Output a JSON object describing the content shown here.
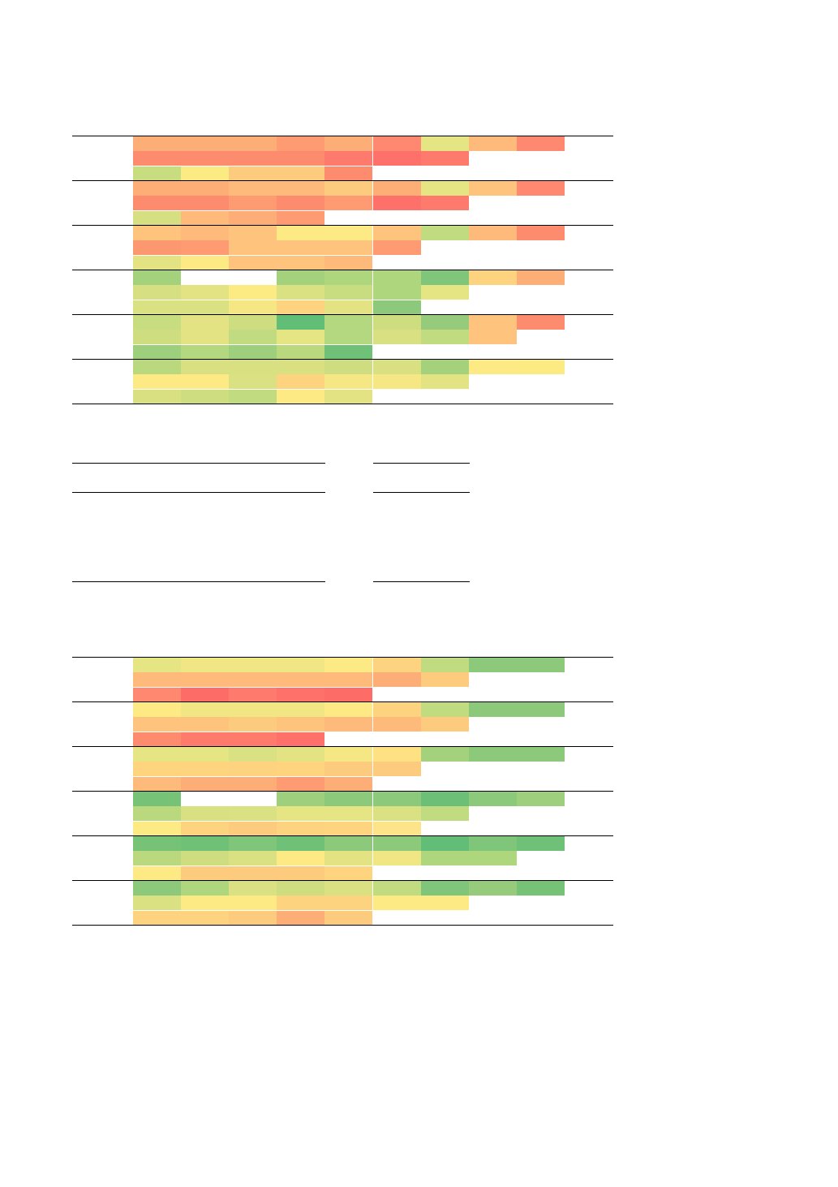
{
  "palette": {
    "a": "#fdad76",
    "b": "#fd8c6f",
    "c": "#fe7a6c",
    "d": "#fe9b72",
    "e": "#fb9870",
    "f": "#fec37d",
    "g": "#fdba7b",
    "h": "#fe716a",
    "i": "#fe6c68",
    "j": "#fe8970",
    "k": "#e6e584",
    "l": "#c8dc80",
    "m": "#fceb83",
    "n": "#fed37f",
    "o": "#d6e082",
    "p": "#fdcb7e",
    "q": "#feea85",
    "r": "#aed67d",
    "s": "#a4d27c",
    "t": "#c0db80",
    "u": "#7fc57a",
    "v": "#e3e383",
    "w": "#dae182",
    "x": "#f5e884",
    "y": "#bad97f",
    "z": "#8cc97a",
    "A": "#62bd77",
    "B": "#b4d87f",
    "C": "#d8e082",
    "D": "#cddd80",
    "E": "#9ecf7c",
    "F": "#6fc178",
    "G": "#96cb7b",
    "H": "#f0e784",
    "I": "#fde38a",
    "J": "#7fc67b",
    "K": "#6cbf77",
    "L": "#fee183",
    "M": "#fed47f",
    "N": "#76c378"
  },
  "heatmap_top": [
    [
      "a",
      "a",
      "a",
      "d",
      "a",
      "j",
      "k",
      "g",
      "j"
    ],
    [
      "b",
      "b",
      "b",
      "b",
      "c",
      "h",
      "c"
    ],
    [
      "l",
      "m",
      "p",
      "p",
      "b"
    ],
    [
      "a",
      "a",
      "g",
      "g",
      "p",
      "a",
      "k",
      "f",
      "j"
    ],
    [
      "b",
      "b",
      "d",
      "b",
      "d",
      "h",
      "c"
    ],
    [
      "o",
      "g",
      "a",
      "d"
    ],
    [
      "f",
      "g",
      "f",
      "q",
      "q",
      "f",
      "t",
      "g",
      "b"
    ],
    [
      "e",
      "d",
      "f",
      "f",
      "f",
      "d"
    ],
    [
      "v",
      "q",
      "f",
      "f",
      "g"
    ],
    [
      "s",
      "-",
      "-",
      "s",
      "r",
      "r",
      "u",
      "n",
      "a"
    ],
    [
      "o",
      "v",
      "m",
      "w",
      "l",
      "r",
      "k"
    ],
    [
      "w",
      "w",
      "x",
      "n",
      "v",
      "z"
    ],
    [
      "l",
      "v",
      "D",
      "A",
      "B",
      "D",
      "G",
      "f",
      "b"
    ],
    [
      "D",
      "v",
      "t",
      "k",
      "B",
      "C",
      "t",
      "f"
    ],
    [
      "E",
      "B",
      "E",
      "y",
      "F"
    ],
    [
      "y",
      "C",
      "C",
      "C",
      "D",
      "C",
      "s",
      "q",
      "m"
    ],
    [
      "q",
      "q",
      "w",
      "n",
      "x",
      "x",
      "v"
    ],
    [
      "C",
      "D",
      "t",
      "q",
      "v"
    ]
  ],
  "heatmap_bottom": [
    [
      "k",
      "H",
      "H",
      "H",
      "q",
      "n",
      "t",
      "z",
      "z"
    ],
    [
      "g",
      "g",
      "g",
      "g",
      "g",
      "a",
      "p"
    ],
    [
      "j",
      "i",
      "c",
      "h",
      "i"
    ],
    [
      "q",
      "H",
      "H",
      "H",
      "q",
      "n",
      "t",
      "z",
      "z"
    ],
    [
      "f",
      "f",
      "p",
      "f",
      "g",
      "g",
      "p"
    ],
    [
      "b",
      "c",
      "c",
      "h"
    ],
    [
      "k",
      "k",
      "w",
      "v",
      "x",
      "L",
      "s",
      "z",
      "z"
    ],
    [
      "M",
      "M",
      "n",
      "M",
      "p",
      "p"
    ],
    [
      "g",
      "a",
      "a",
      "d",
      "a"
    ],
    [
      "N",
      "-",
      "-",
      "E",
      "z",
      "z",
      "K",
      "z",
      "E"
    ],
    [
      "y",
      "C",
      "w",
      "k",
      "k",
      "w",
      "t"
    ],
    [
      "q",
      "n",
      "p",
      "n",
      "M",
      "I"
    ],
    [
      "N",
      "F",
      "J",
      "F",
      "z",
      "z",
      "A",
      "u",
      "F"
    ],
    [
      "y",
      "D",
      "w",
      "q",
      "v",
      "H",
      "r",
      "r"
    ],
    [
      "q",
      "p",
      "p",
      "p",
      "M"
    ],
    [
      "z",
      "r",
      "w",
      "D",
      "w",
      "t",
      "u",
      "G",
      "N"
    ],
    [
      "w",
      "q",
      "q",
      "n",
      "n",
      "q",
      "q"
    ],
    [
      "n",
      "n",
      "p",
      "a",
      "p"
    ]
  ]
}
